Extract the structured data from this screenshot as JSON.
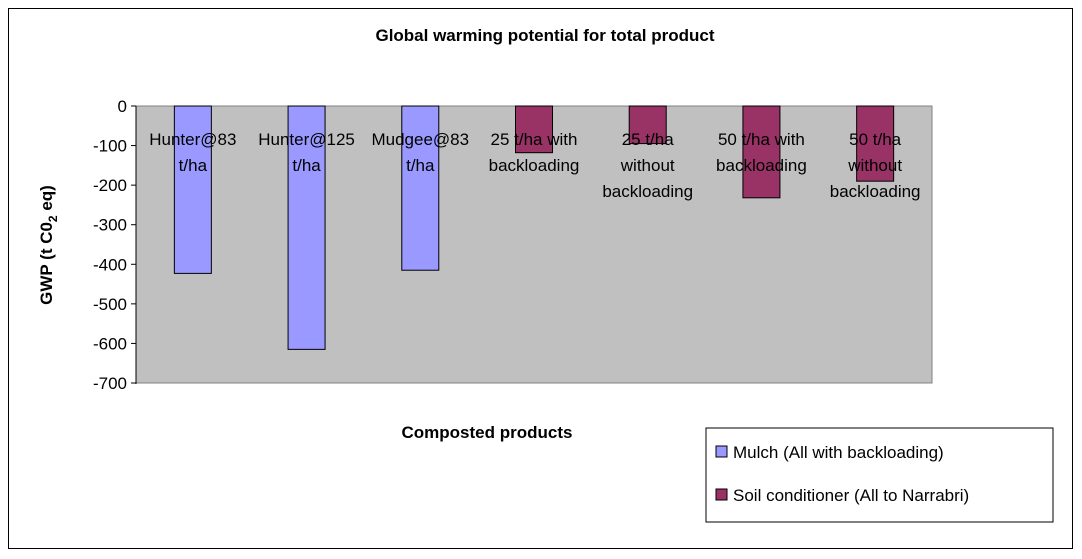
{
  "chart_data": {
    "type": "bar",
    "title": "Global warming potential for total product",
    "ylabel": "GWP (t C0₂ eq)",
    "ylabel_parts": [
      "GWP (t C0",
      "2",
      " eq)"
    ],
    "xlabel": "Composted products",
    "ylim": [
      -700,
      0
    ],
    "ytick_step": 100,
    "yticks": [
      "0",
      "-100",
      "-200",
      "-300",
      "-400",
      "-500",
      "-600",
      "-700"
    ],
    "grid": false,
    "plot_background": "#c0c0c0",
    "categories": [
      [
        "Hunter@83",
        "t/ha"
      ],
      [
        "Hunter@125",
        "t/ha"
      ],
      [
        "Mudgee@83",
        "t/ha"
      ],
      [
        "25 t/ha with",
        "backloading"
      ],
      [
        "25 t/ha",
        "without",
        "backloading"
      ],
      [
        "50 t/ha with",
        "backloading"
      ],
      [
        "50 t/ha",
        "without",
        "backloading"
      ]
    ],
    "series": [
      {
        "name": "Mulch (All with backloading)",
        "color": "#9999ff",
        "values": [
          -423,
          -615,
          -415,
          null,
          null,
          null,
          null
        ]
      },
      {
        "name": "Soil conditioner (All to Narrabri)",
        "color": "#993366",
        "values": [
          null,
          null,
          null,
          -118,
          -95,
          -232,
          -190
        ]
      }
    ],
    "legend_position": "bottom-right"
  }
}
